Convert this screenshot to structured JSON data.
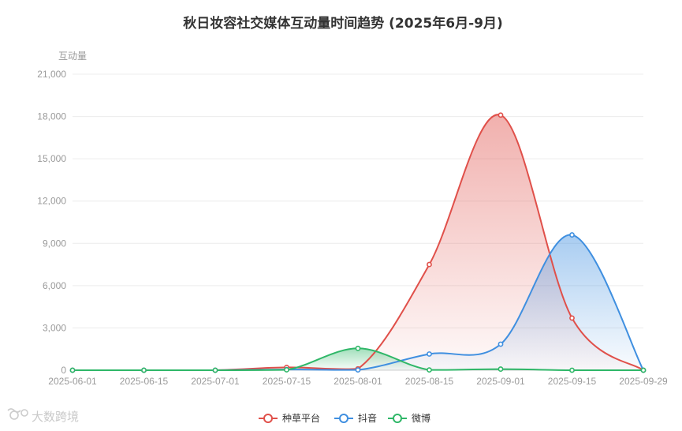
{
  "chart_data": {
    "type": "area",
    "title": "秋日妆容社交媒体互动量时间趋势 (2025年6月-9月)",
    "ylabel": "互动量",
    "xlabel": "",
    "ylim": [
      0,
      21000
    ],
    "yticks": [
      "0",
      "3,000",
      "6,000",
      "9,000",
      "12,000",
      "15,000",
      "18,000",
      "21,000"
    ],
    "ytick_values": [
      0,
      3000,
      6000,
      9000,
      12000,
      15000,
      18000,
      21000
    ],
    "x": [
      "2025-06-01",
      "2025-06-15",
      "2025-07-01",
      "2025-07-15",
      "2025-08-01",
      "2025-08-15",
      "2025-09-01",
      "2025-09-15",
      "2025-09-29"
    ],
    "grid": true,
    "legend_position": "bottom",
    "series": [
      {
        "name": "种草平台",
        "color": "#e0504a",
        "values": [
          0,
          0,
          0,
          200,
          100,
          7500,
          18100,
          3700,
          0
        ]
      },
      {
        "name": "抖音",
        "color": "#3f8fe0",
        "values": [
          0,
          0,
          0,
          50,
          20,
          1150,
          1850,
          9600,
          0
        ]
      },
      {
        "name": "微博",
        "color": "#2fb768",
        "values": [
          0,
          0,
          0,
          30,
          1550,
          20,
          80,
          0,
          0
        ]
      }
    ]
  },
  "watermark": "大数跨境"
}
